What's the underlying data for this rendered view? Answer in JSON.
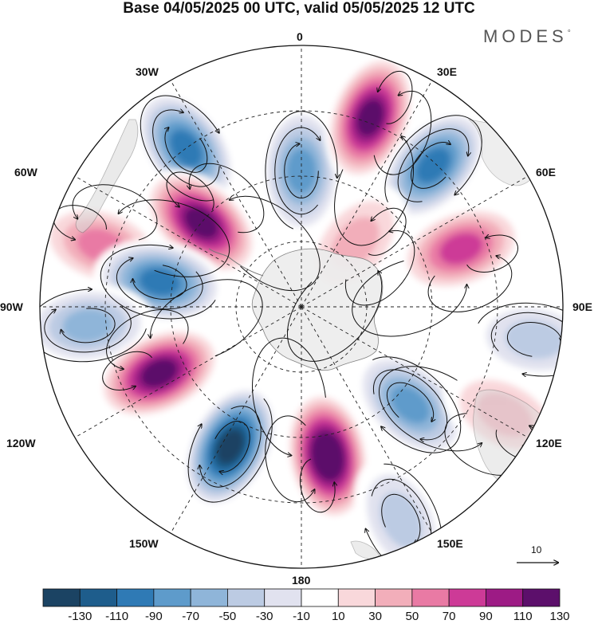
{
  "title": "Base 04/05/2025 00 UTC, valid 05/05/2025 12 UTC",
  "logo": {
    "text": "MODES",
    "mark": "°"
  },
  "longitude_labels": [
    {
      "key": "n",
      "text": "0"
    },
    {
      "key": "30e",
      "text": "30E"
    },
    {
      "key": "60e",
      "text": "60E"
    },
    {
      "key": "90e",
      "text": "90E"
    },
    {
      "key": "120e",
      "text": "120E"
    },
    {
      "key": "150e",
      "text": "150E"
    },
    {
      "key": "s",
      "text": "180"
    },
    {
      "key": "150w",
      "text": "150W"
    },
    {
      "key": "120w",
      "text": "120W"
    },
    {
      "key": "90w",
      "text": "90W"
    },
    {
      "key": "60w",
      "text": "60W"
    },
    {
      "key": "30w",
      "text": "30W"
    }
  ],
  "colorbar": {
    "colors": [
      "#1b4363",
      "#1e5d8c",
      "#2f7ab5",
      "#5e9bcb",
      "#8fb5d9",
      "#bccbe3",
      "#e1e2ef",
      "#ffffff",
      "#f9d8db",
      "#f2aeba",
      "#e97aa4",
      "#cd3a97",
      "#9d1b85",
      "#5c0f6b"
    ],
    "labels": [
      "-130",
      "-110",
      "-90",
      "-70",
      "-50",
      "-30",
      "-10",
      "10",
      "30",
      "50",
      "70",
      "90",
      "110",
      "130"
    ]
  },
  "reference_vector": {
    "label": "10"
  },
  "anomaly_centers": [
    {
      "lon_deg": -36,
      "colat_frac": 0.75,
      "value": -95
    },
    {
      "lon_deg": -73,
      "colat_frac": 0.8,
      "value": 55
    },
    {
      "lon_deg": -50,
      "colat_frac": 0.5,
      "value": 110
    },
    {
      "lon_deg": 0,
      "colat_frac": 0.52,
      "value": -75
    },
    {
      "lon_deg": 20,
      "colat_frac": 0.77,
      "value": 115
    },
    {
      "lon_deg": 43,
      "colat_frac": 0.74,
      "value": -95
    },
    {
      "lon_deg": 70,
      "colat_frac": 0.65,
      "value": 70
    },
    {
      "lon_deg": 40,
      "colat_frac": 0.32,
      "value": 40
    },
    {
      "lon_deg": -80,
      "colat_frac": 0.55,
      "value": -90
    },
    {
      "lon_deg": -95,
      "colat_frac": 0.82,
      "value": -60
    },
    {
      "lon_deg": -115,
      "colat_frac": 0.6,
      "value": 125
    },
    {
      "lon_deg": -153,
      "colat_frac": 0.6,
      "value": -135
    },
    {
      "lon_deg": 170,
      "colat_frac": 0.58,
      "value": 135
    },
    {
      "lon_deg": 132,
      "colat_frac": 0.56,
      "value": -80
    },
    {
      "lon_deg": 118,
      "colat_frac": 0.88,
      "value": 40
    },
    {
      "lon_deg": 98,
      "colat_frac": 0.9,
      "value": -30
    },
    {
      "lon_deg": 155,
      "colat_frac": 0.9,
      "value": -45
    }
  ]
}
